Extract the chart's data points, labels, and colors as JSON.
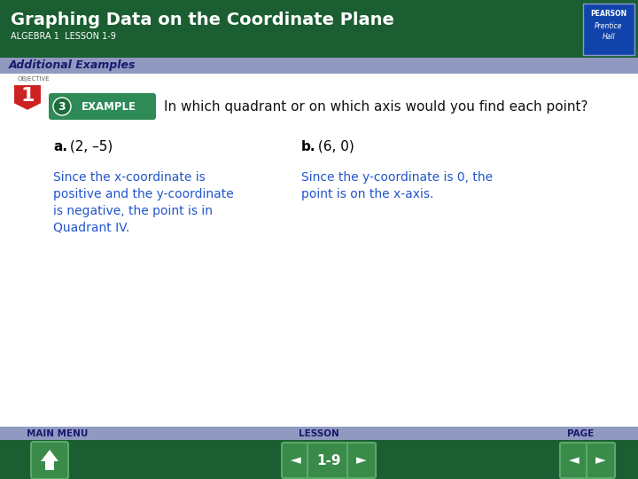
{
  "title": "Graphing Data on the Coordinate Plane",
  "subtitle": "ALGEBRA 1  LESSON 1-9",
  "section_label": "Additional Examples",
  "example_number": "3",
  "example_label": "EXAMPLE",
  "question": "In which quadrant or on which axis would you find each point?",
  "part_a_label": "a.",
  "part_a_point": " (2, –5)",
  "part_b_label": "b.",
  "part_b_point": " (6, 0)",
  "answer_a_lines": [
    "Since the x-coordinate is",
    "positive and the y-coordinate",
    "is negative, the point is in",
    "Quadrant IV."
  ],
  "answer_b_lines": [
    "Since the y-coordinate is 0, the",
    "point is on the x-axis."
  ],
  "nav_main": "MAIN MENU",
  "nav_lesson": "LESSON",
  "nav_page": "PAGE",
  "nav_number": "1-9",
  "header_bg": "#1b5e32",
  "header_text_color": "#ffffff",
  "section_bg": "#9099c0",
  "section_text_color": "#1a1a6e",
  "body_bg": "#ffffff",
  "footer_bg": "#1b5e32",
  "example_badge_bg": "#2e8b57",
  "objective_red": "#cc2222",
  "answer_text_color": "#2255cc",
  "pearson_bg": "#003399"
}
